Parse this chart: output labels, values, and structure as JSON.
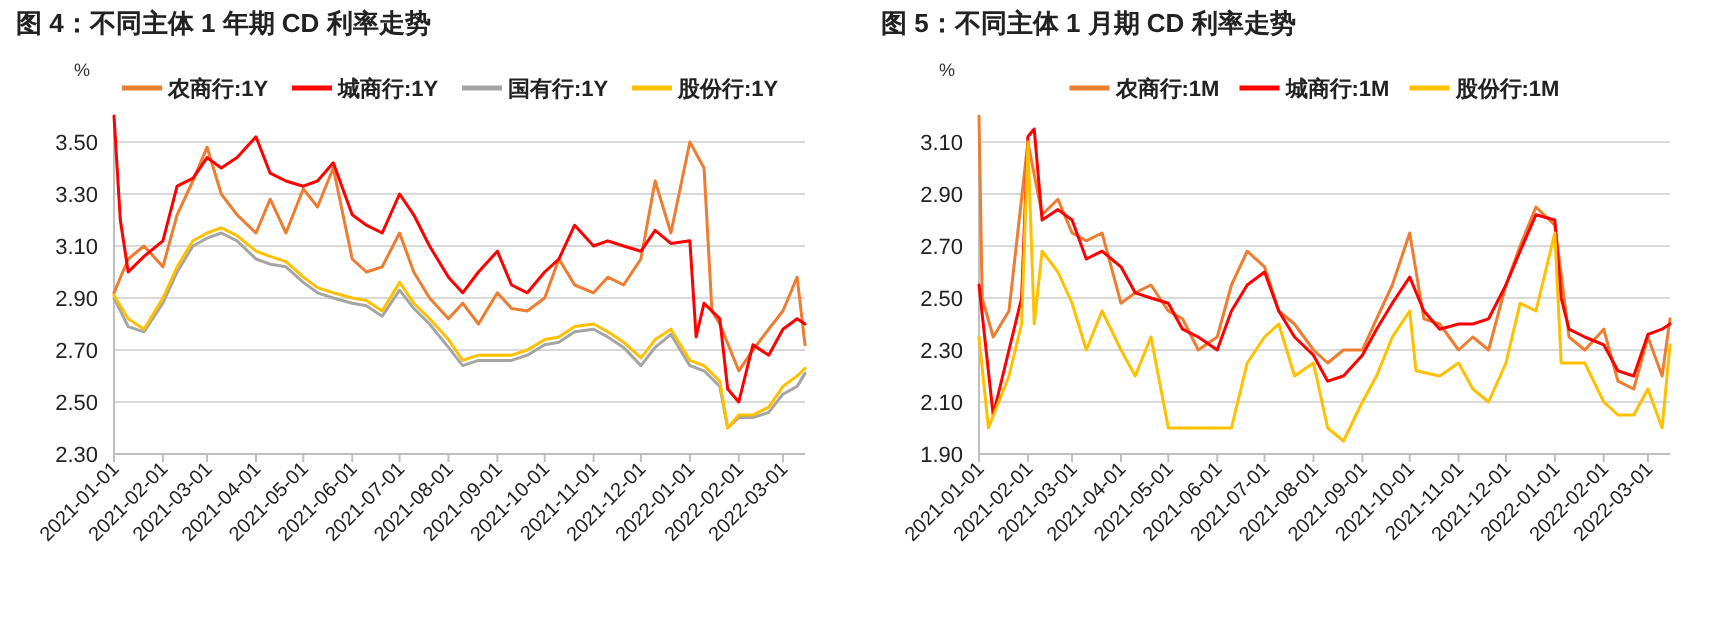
{
  "chart_data": [
    {
      "type": "line",
      "title": "图 4：不同主体 1 年期 CD 利率走势",
      "ylabel": "%",
      "grid": "y",
      "legend": "top",
      "xlim": [
        "2021-01-01",
        "2022-03-15"
      ],
      "xticks": [
        "2021-01-01",
        "2021-02-01",
        "2021-03-01",
        "2021-04-01",
        "2021-05-01",
        "2021-06-01",
        "2021-07-01",
        "2021-08-01",
        "2021-09-01",
        "2021-10-01",
        "2021-11-01",
        "2021-12-01",
        "2022-01-01",
        "2022-02-01",
        "2022-03-01"
      ],
      "ylim": [
        2.3,
        3.6
      ],
      "yticks": [
        {
          "value": 2.3,
          "label": "2.30"
        },
        {
          "value": 2.5,
          "label": "2.50"
        },
        {
          "value": 2.7,
          "label": "2.70"
        },
        {
          "value": 2.9,
          "label": "2.90"
        },
        {
          "value": 3.1,
          "label": "3.10"
        },
        {
          "value": 3.3,
          "label": "3.30"
        },
        {
          "value": 3.5,
          "label": "3.50"
        }
      ],
      "series": [
        {
          "name": "农商行:1Y",
          "color": "#ed7d31",
          "x": [
            "2021-01-01",
            "2021-01-10",
            "2021-01-20",
            "2021-02-01",
            "2021-02-10",
            "2021-02-20",
            "2021-03-01",
            "2021-03-10",
            "2021-03-20",
            "2021-04-01",
            "2021-04-10",
            "2021-04-20",
            "2021-05-01",
            "2021-05-10",
            "2021-05-20",
            "2021-06-01",
            "2021-06-10",
            "2021-06-20",
            "2021-07-01",
            "2021-07-10",
            "2021-07-20",
            "2021-08-01",
            "2021-08-10",
            "2021-08-20",
            "2021-09-01",
            "2021-09-10",
            "2021-09-20",
            "2021-10-01",
            "2021-10-10",
            "2021-10-20",
            "2021-11-01",
            "2021-11-10",
            "2021-11-20",
            "2021-12-01",
            "2021-12-10",
            "2021-12-20",
            "2022-01-01",
            "2022-01-10",
            "2022-01-15",
            "2022-01-20",
            "2022-02-01",
            "2022-02-10",
            "2022-02-20",
            "2022-03-01",
            "2022-03-10",
            "2022-03-15"
          ],
          "values": [
            2.92,
            3.05,
            3.1,
            3.02,
            3.22,
            3.35,
            3.48,
            3.3,
            3.22,
            3.15,
            3.28,
            3.15,
            3.32,
            3.25,
            3.4,
            3.05,
            3.0,
            3.02,
            3.15,
            3.0,
            2.9,
            2.82,
            2.88,
            2.8,
            2.92,
            2.86,
            2.85,
            2.9,
            3.05,
            2.95,
            2.92,
            2.98,
            2.95,
            3.05,
            3.35,
            3.15,
            3.5,
            3.4,
            2.85,
            2.8,
            2.62,
            2.7,
            2.78,
            2.85,
            2.98,
            2.72
          ]
        },
        {
          "name": "城商行:1Y",
          "color": "#ff0000",
          "x": [
            "2021-01-01",
            "2021-01-05",
            "2021-01-10",
            "2021-01-20",
            "2021-02-01",
            "2021-02-10",
            "2021-02-20",
            "2021-03-01",
            "2021-03-10",
            "2021-03-20",
            "2021-04-01",
            "2021-04-10",
            "2021-04-20",
            "2021-05-01",
            "2021-05-10",
            "2021-05-20",
            "2021-06-01",
            "2021-06-10",
            "2021-06-20",
            "2021-07-01",
            "2021-07-10",
            "2021-07-20",
            "2021-08-01",
            "2021-08-10",
            "2021-08-20",
            "2021-09-01",
            "2021-09-10",
            "2021-09-20",
            "2021-10-01",
            "2021-10-10",
            "2021-10-20",
            "2021-11-01",
            "2021-11-10",
            "2021-11-20",
            "2021-12-01",
            "2021-12-10",
            "2021-12-20",
            "2022-01-01",
            "2022-01-05",
            "2022-01-10",
            "2022-01-20",
            "2022-01-25",
            "2022-02-01",
            "2022-02-10",
            "2022-02-20",
            "2022-03-01",
            "2022-03-10",
            "2022-03-15"
          ],
          "values": [
            3.6,
            3.2,
            3.0,
            3.06,
            3.12,
            3.33,
            3.36,
            3.44,
            3.4,
            3.44,
            3.52,
            3.38,
            3.35,
            3.33,
            3.35,
            3.42,
            3.22,
            3.18,
            3.15,
            3.3,
            3.22,
            3.1,
            2.98,
            2.92,
            3.0,
            3.08,
            2.95,
            2.92,
            3.0,
            3.05,
            3.18,
            3.1,
            3.12,
            3.1,
            3.08,
            3.16,
            3.11,
            3.12,
            2.75,
            2.88,
            2.82,
            2.55,
            2.5,
            2.72,
            2.68,
            2.78,
            2.82,
            2.8
          ]
        },
        {
          "name": "国有行:1Y",
          "color": "#a5a5a5",
          "x": [
            "2021-01-01",
            "2021-01-10",
            "2021-01-20",
            "2021-02-01",
            "2021-02-10",
            "2021-02-20",
            "2021-03-01",
            "2021-03-10",
            "2021-03-20",
            "2021-04-01",
            "2021-04-10",
            "2021-04-20",
            "2021-05-01",
            "2021-05-10",
            "2021-05-20",
            "2021-06-01",
            "2021-06-10",
            "2021-06-20",
            "2021-07-01",
            "2021-07-10",
            "2021-07-20",
            "2021-08-01",
            "2021-08-10",
            "2021-08-20",
            "2021-09-01",
            "2021-09-10",
            "2021-09-20",
            "2021-10-01",
            "2021-10-10",
            "2021-10-20",
            "2021-11-01",
            "2021-11-10",
            "2021-11-20",
            "2021-12-01",
            "2021-12-10",
            "2021-12-20",
            "2022-01-01",
            "2022-01-10",
            "2022-01-20",
            "2022-01-25",
            "2022-02-01",
            "2022-02-10",
            "2022-02-20",
            "2022-03-01",
            "2022-03-10",
            "2022-03-15"
          ],
          "values": [
            2.9,
            2.79,
            2.77,
            2.88,
            3.0,
            3.1,
            3.13,
            3.15,
            3.12,
            3.05,
            3.03,
            3.02,
            2.96,
            2.92,
            2.9,
            2.88,
            2.87,
            2.83,
            2.93,
            2.86,
            2.8,
            2.71,
            2.64,
            2.66,
            2.66,
            2.66,
            2.68,
            2.72,
            2.73,
            2.77,
            2.78,
            2.75,
            2.71,
            2.64,
            2.71,
            2.76,
            2.64,
            2.62,
            2.56,
            2.4,
            2.44,
            2.44,
            2.46,
            2.53,
            2.56,
            2.61
          ]
        },
        {
          "name": "股份行:1Y",
          "color": "#ffc000",
          "x": [
            "2021-01-01",
            "2021-01-10",
            "2021-01-20",
            "2021-02-01",
            "2021-02-10",
            "2021-02-20",
            "2021-03-01",
            "2021-03-10",
            "2021-03-20",
            "2021-04-01",
            "2021-04-10",
            "2021-04-20",
            "2021-05-01",
            "2021-05-10",
            "2021-05-20",
            "2021-06-01",
            "2021-06-10",
            "2021-06-20",
            "2021-07-01",
            "2021-07-10",
            "2021-07-20",
            "2021-08-01",
            "2021-08-10",
            "2021-08-20",
            "2021-09-01",
            "2021-09-10",
            "2021-09-20",
            "2021-10-01",
            "2021-10-10",
            "2021-10-20",
            "2021-11-01",
            "2021-11-10",
            "2021-11-20",
            "2021-12-01",
            "2021-12-10",
            "2021-12-20",
            "2022-01-01",
            "2022-01-10",
            "2022-01-20",
            "2022-01-25",
            "2022-02-01",
            "2022-02-10",
            "2022-02-20",
            "2022-03-01",
            "2022-03-10",
            "2022-03-15"
          ],
          "values": [
            2.91,
            2.82,
            2.78,
            2.9,
            3.02,
            3.12,
            3.15,
            3.17,
            3.14,
            3.08,
            3.06,
            3.04,
            2.98,
            2.94,
            2.92,
            2.9,
            2.89,
            2.85,
            2.96,
            2.88,
            2.82,
            2.74,
            2.66,
            2.68,
            2.68,
            2.68,
            2.7,
            2.74,
            2.75,
            2.79,
            2.8,
            2.77,
            2.73,
            2.67,
            2.74,
            2.78,
            2.66,
            2.64,
            2.58,
            2.4,
            2.45,
            2.45,
            2.48,
            2.56,
            2.6,
            2.63
          ]
        }
      ]
    },
    {
      "type": "line",
      "title": "图 5：不同主体 1 月期 CD 利率走势",
      "ylabel": "%",
      "grid": "y",
      "legend": "top",
      "xlim": [
        "2021-01-01",
        "2022-03-15"
      ],
      "xticks": [
        "2021-01-01",
        "2021-02-01",
        "2021-03-01",
        "2021-04-01",
        "2021-05-01",
        "2021-06-01",
        "2021-07-01",
        "2021-08-01",
        "2021-09-01",
        "2021-10-01",
        "2021-11-01",
        "2021-12-01",
        "2022-01-01",
        "2022-02-01",
        "2022-03-01"
      ],
      "ylim": [
        1.9,
        3.2
      ],
      "yticks": [
        {
          "value": 1.9,
          "label": "1.90"
        },
        {
          "value": 2.1,
          "label": "2.10"
        },
        {
          "value": 2.3,
          "label": "2.30"
        },
        {
          "value": 2.5,
          "label": "2.50"
        },
        {
          "value": 2.7,
          "label": "2.70"
        },
        {
          "value": 2.9,
          "label": "2.90"
        },
        {
          "value": 3.1,
          "label": "3.10"
        }
      ],
      "series": [
        {
          "name": "农商行:1M",
          "color": "#ed7d31",
          "x": [
            "2021-01-01",
            "2021-01-03",
            "2021-01-10",
            "2021-01-20",
            "2021-02-01",
            "2021-02-10",
            "2021-02-20",
            "2021-03-01",
            "2021-03-10",
            "2021-03-20",
            "2021-04-01",
            "2021-04-10",
            "2021-04-20",
            "2021-05-01",
            "2021-05-10",
            "2021-05-20",
            "2021-06-01",
            "2021-06-10",
            "2021-06-20",
            "2021-07-01",
            "2021-07-10",
            "2021-07-20",
            "2021-08-01",
            "2021-08-10",
            "2021-08-20",
            "2021-09-01",
            "2021-09-10",
            "2021-09-20",
            "2021-10-01",
            "2021-10-10",
            "2021-10-20",
            "2021-11-01",
            "2021-11-10",
            "2021-11-20",
            "2021-12-01",
            "2021-12-10",
            "2021-12-20",
            "2022-01-01",
            "2022-01-10",
            "2022-01-20",
            "2022-02-01",
            "2022-02-10",
            "2022-02-20",
            "2022-03-01",
            "2022-03-10",
            "2022-03-15"
          ],
          "values": [
            3.2,
            2.5,
            2.35,
            2.45,
            3.1,
            2.82,
            2.88,
            2.75,
            2.72,
            2.75,
            2.48,
            2.52,
            2.55,
            2.45,
            2.42,
            2.3,
            2.35,
            2.55,
            2.68,
            2.62,
            2.45,
            2.4,
            2.3,
            2.25,
            2.3,
            2.3,
            2.42,
            2.55,
            2.75,
            2.42,
            2.4,
            2.3,
            2.35,
            2.3,
            2.55,
            2.7,
            2.85,
            2.78,
            2.35,
            2.3,
            2.38,
            2.18,
            2.15,
            2.35,
            2.2,
            2.42
          ]
        },
        {
          "name": "城商行:1M",
          "color": "#ff0000",
          "x": [
            "2021-01-01",
            "2021-01-10",
            "2021-01-20",
            "2021-01-28",
            "2021-02-01",
            "2021-02-05",
            "2021-02-10",
            "2021-02-20",
            "2021-03-01",
            "2021-03-10",
            "2021-03-20",
            "2021-04-01",
            "2021-04-10",
            "2021-04-20",
            "2021-05-01",
            "2021-05-10",
            "2021-05-20",
            "2021-06-01",
            "2021-06-10",
            "2021-06-20",
            "2021-07-01",
            "2021-07-10",
            "2021-07-20",
            "2021-08-01",
            "2021-08-10",
            "2021-08-20",
            "2021-09-01",
            "2021-09-10",
            "2021-09-20",
            "2021-10-01",
            "2021-10-10",
            "2021-10-20",
            "2021-11-01",
            "2021-11-10",
            "2021-11-20",
            "2021-12-01",
            "2021-12-10",
            "2021-12-20",
            "2022-01-01",
            "2022-01-05",
            "2022-01-10",
            "2022-01-20",
            "2022-02-01",
            "2022-02-10",
            "2022-02-20",
            "2022-03-01",
            "2022-03-10",
            "2022-03-15"
          ],
          "values": [
            2.55,
            2.05,
            2.3,
            2.5,
            3.12,
            3.15,
            2.8,
            2.84,
            2.8,
            2.65,
            2.68,
            2.62,
            2.52,
            2.5,
            2.48,
            2.38,
            2.35,
            2.3,
            2.45,
            2.55,
            2.6,
            2.45,
            2.35,
            2.28,
            2.18,
            2.2,
            2.28,
            2.38,
            2.48,
            2.58,
            2.45,
            2.38,
            2.4,
            2.4,
            2.42,
            2.55,
            2.68,
            2.82,
            2.8,
            2.5,
            2.38,
            2.35,
            2.32,
            2.22,
            2.2,
            2.36,
            2.38,
            2.4
          ]
        },
        {
          "name": "股份行:1M",
          "color": "#ffc000",
          "x": [
            "2021-01-01",
            "2021-01-07",
            "2021-01-20",
            "2021-01-28",
            "2021-02-01",
            "2021-02-05",
            "2021-02-10",
            "2021-02-20",
            "2021-03-01",
            "2021-03-10",
            "2021-03-20",
            "2021-04-01",
            "2021-04-10",
            "2021-04-20",
            "2021-05-01",
            "2021-05-20",
            "2021-06-01",
            "2021-06-10",
            "2021-06-20",
            "2021-07-01",
            "2021-07-10",
            "2021-07-20",
            "2021-08-01",
            "2021-08-10",
            "2021-08-20",
            "2021-09-01",
            "2021-09-10",
            "2021-09-20",
            "2021-10-01",
            "2021-10-05",
            "2021-10-20",
            "2021-11-01",
            "2021-11-10",
            "2021-11-20",
            "2021-12-01",
            "2021-12-10",
            "2021-12-20",
            "2022-01-01",
            "2022-01-05",
            "2022-01-20",
            "2022-02-01",
            "2022-02-10",
            "2022-02-20",
            "2022-03-01",
            "2022-03-10",
            "2022-03-15"
          ],
          "values": [
            2.35,
            2.0,
            2.2,
            2.4,
            3.1,
            2.4,
            2.68,
            2.6,
            2.48,
            2.3,
            2.45,
            2.3,
            2.2,
            2.35,
            2.0,
            2.0,
            2.0,
            2.0,
            2.25,
            2.35,
            2.4,
            2.2,
            2.25,
            2.0,
            1.95,
            2.1,
            2.2,
            2.35,
            2.45,
            2.22,
            2.2,
            2.25,
            2.15,
            2.1,
            2.25,
            2.48,
            2.45,
            2.75,
            2.25,
            2.25,
            2.1,
            2.05,
            2.05,
            2.15,
            2.0,
            2.32
          ]
        }
      ]
    }
  ]
}
